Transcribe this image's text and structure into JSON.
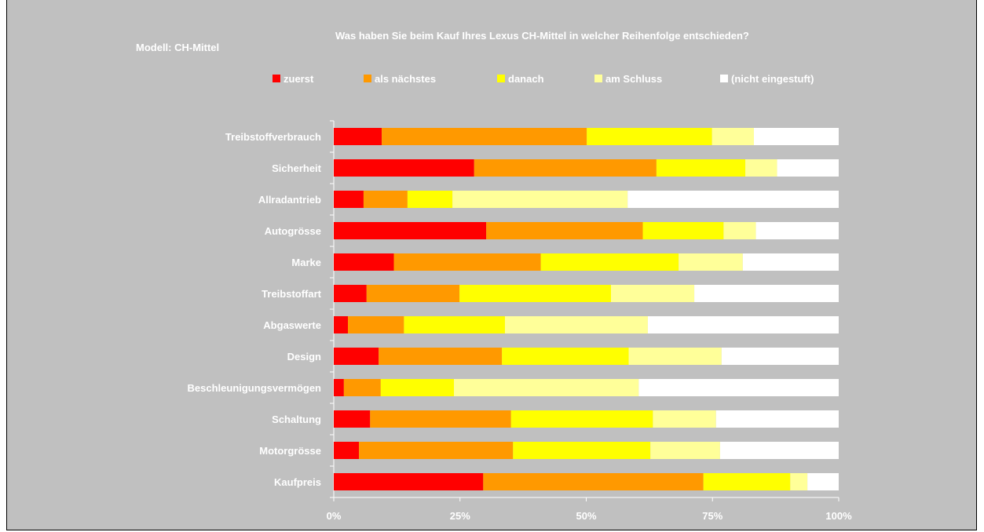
{
  "model_label": "Modell: CH-Mittel",
  "chart_data": {
    "type": "bar",
    "orientation": "horizontal",
    "stacked": "percent",
    "title": "Was haben Sie beim Kauf Ihres Lexus CH-Mittel in welcher Reihenfolge entschieden?",
    "categories": [
      "Treibstoffverbrauch",
      "Sicherheit",
      "Allradantrieb",
      "Autogrösse",
      "Marke",
      "Treibstoffart",
      "Abgaswerte",
      "Design",
      "Beschleunigungsvermögen",
      "Schaltung",
      "Motorgrösse",
      "Kaufpreis"
    ],
    "series": [
      {
        "name": "zuerst",
        "color": "#ff0000",
        "values": [
          9.5,
          27.8,
          5.9,
          30.2,
          11.9,
          6.5,
          2.8,
          8.9,
          2.0,
          7.2,
          5.0,
          29.6
        ]
      },
      {
        "name": "als nächstes",
        "color": "#ff9900",
        "values": [
          40.6,
          36.1,
          8.7,
          31.0,
          29.1,
          18.4,
          11.1,
          24.4,
          7.3,
          27.9,
          30.5,
          43.6
        ]
      },
      {
        "name": "danach",
        "color": "#ffff00",
        "values": [
          24.8,
          17.6,
          8.9,
          16.0,
          27.3,
          30.0,
          20.0,
          25.1,
          14.5,
          28.1,
          27.2,
          17.2
        ]
      },
      {
        "name": "am Schluss",
        "color": "#ffff99",
        "values": [
          8.3,
          6.3,
          34.7,
          6.4,
          12.7,
          16.5,
          28.3,
          18.4,
          36.6,
          12.5,
          13.8,
          3.4
        ]
      },
      {
        "name": "(nicht eingestuft)",
        "color": "#ffffff",
        "values": [
          16.8,
          12.2,
          41.8,
          16.4,
          19.0,
          28.6,
          37.8,
          23.2,
          39.6,
          24.3,
          23.5,
          6.2
        ]
      }
    ],
    "xlim": [
      0,
      100
    ],
    "x_ticks": [
      "0%",
      "25%",
      "50%",
      "75%",
      "100%"
    ],
    "gridlines": false,
    "legend_position": "top"
  }
}
